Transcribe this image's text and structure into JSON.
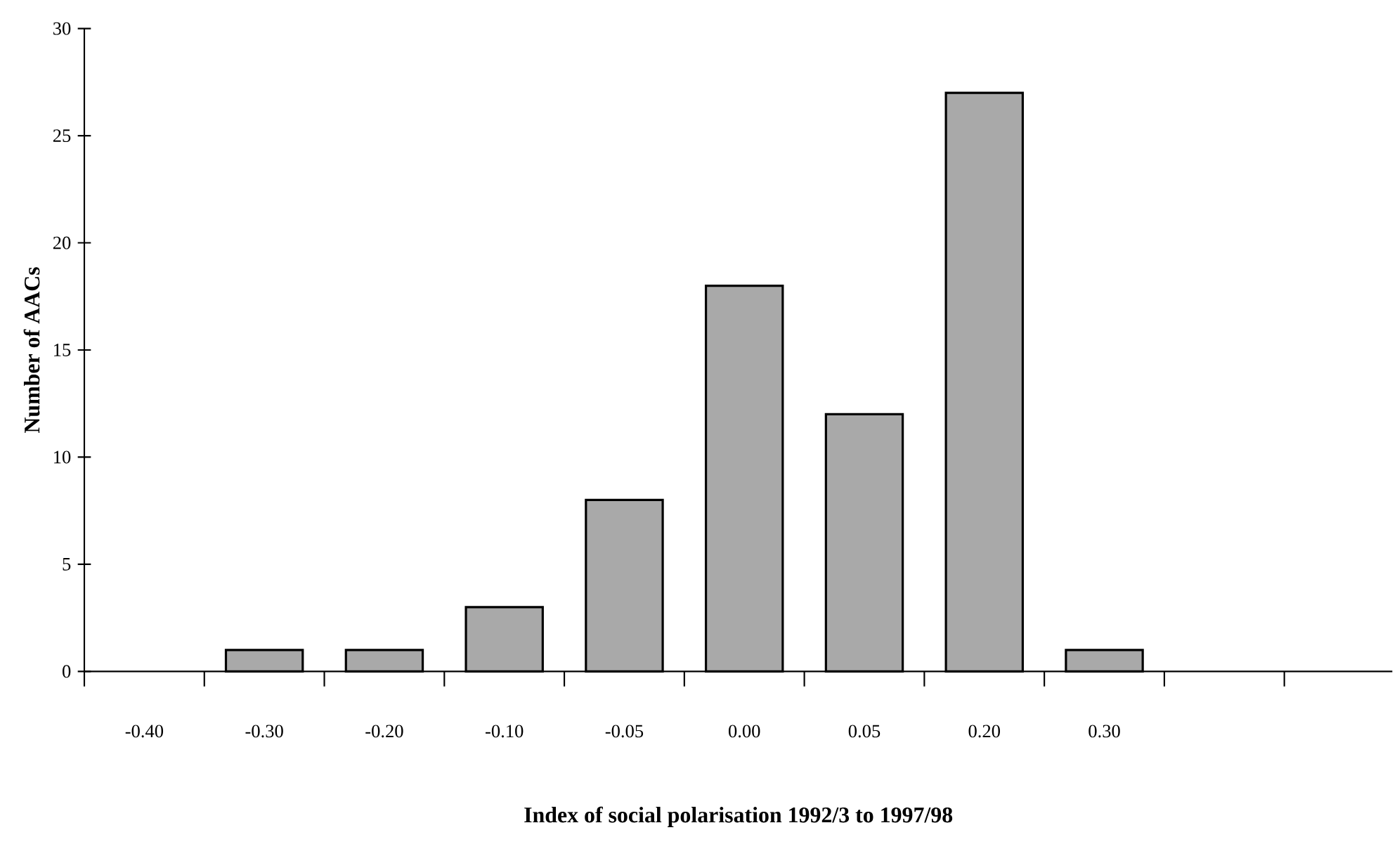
{
  "chart_data": {
    "type": "bar",
    "xlabel": "Index of social polarisation 1992/3 to 1997/98",
    "ylabel": "Number of AACs",
    "categories": [
      "-0.40",
      "-0.30",
      "-0.20",
      "-0.10",
      "-0.05",
      "0.00",
      "0.05",
      "0.20",
      "0.30",
      null,
      null
    ],
    "values": [
      null,
      1,
      1,
      3,
      8,
      18,
      12,
      27,
      1,
      null,
      null
    ],
    "color": "#a9a9a9",
    "ylim": [
      0,
      30
    ],
    "yticks": [
      0,
      5,
      10,
      15,
      20,
      25,
      30
    ]
  }
}
